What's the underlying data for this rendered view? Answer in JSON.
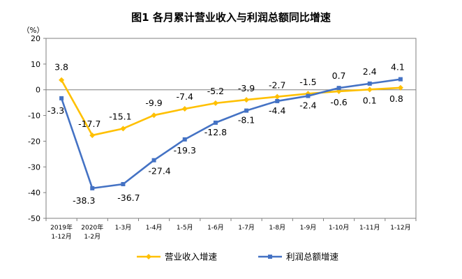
{
  "chart_data": {
    "type": "line",
    "title": "图1  各月累计营业收入与利润总额同比增速",
    "unit_label": "（%）",
    "categories": [
      [
        "2019年",
        "1-12月"
      ],
      [
        "2020年",
        "1-2月"
      ],
      [
        "1-3月"
      ],
      [
        "1-4月"
      ],
      [
        "1-5月"
      ],
      [
        "1-6月"
      ],
      [
        "1-7月"
      ],
      [
        "1-8月"
      ],
      [
        "1-9月"
      ],
      [
        "1-10月"
      ],
      [
        "1-11月"
      ],
      [
        "1-12月"
      ]
    ],
    "ylim": [
      -50,
      20
    ],
    "yticks": [
      20,
      10,
      0,
      -10,
      -20,
      -30,
      -40,
      -50
    ],
    "grid": false,
    "legend_position": "bottom",
    "series": [
      {
        "name": "营业收入增速",
        "color": "#FFC000",
        "marker": "diamond",
        "values": [
          3.8,
          -17.7,
          -15.1,
          -9.9,
          -7.4,
          -5.2,
          -3.9,
          -2.7,
          -1.5,
          -0.6,
          0.1,
          0.8
        ],
        "labels": [
          "3.8",
          "-17.7",
          "-15.1",
          "-9.9",
          "-7.4",
          "-5.2",
          "-3.9",
          "-2.7",
          "-1.5",
          "-0.6",
          "0.1",
          "0.8"
        ]
      },
      {
        "name": "利润总额增速",
        "color": "#4472C4",
        "marker": "square",
        "values": [
          -3.3,
          -38.3,
          -36.7,
          -27.4,
          -19.3,
          -12.8,
          -8.1,
          -4.4,
          -2.4,
          0.7,
          2.4,
          4.1
        ],
        "labels": [
          "-3.3",
          "-38.3",
          "-36.7",
          "-27.4",
          "-19.3",
          "-12.8",
          "-8.1",
          "-4.4",
          "-2.4",
          "0.7",
          "2.4",
          "4.1"
        ]
      }
    ]
  }
}
